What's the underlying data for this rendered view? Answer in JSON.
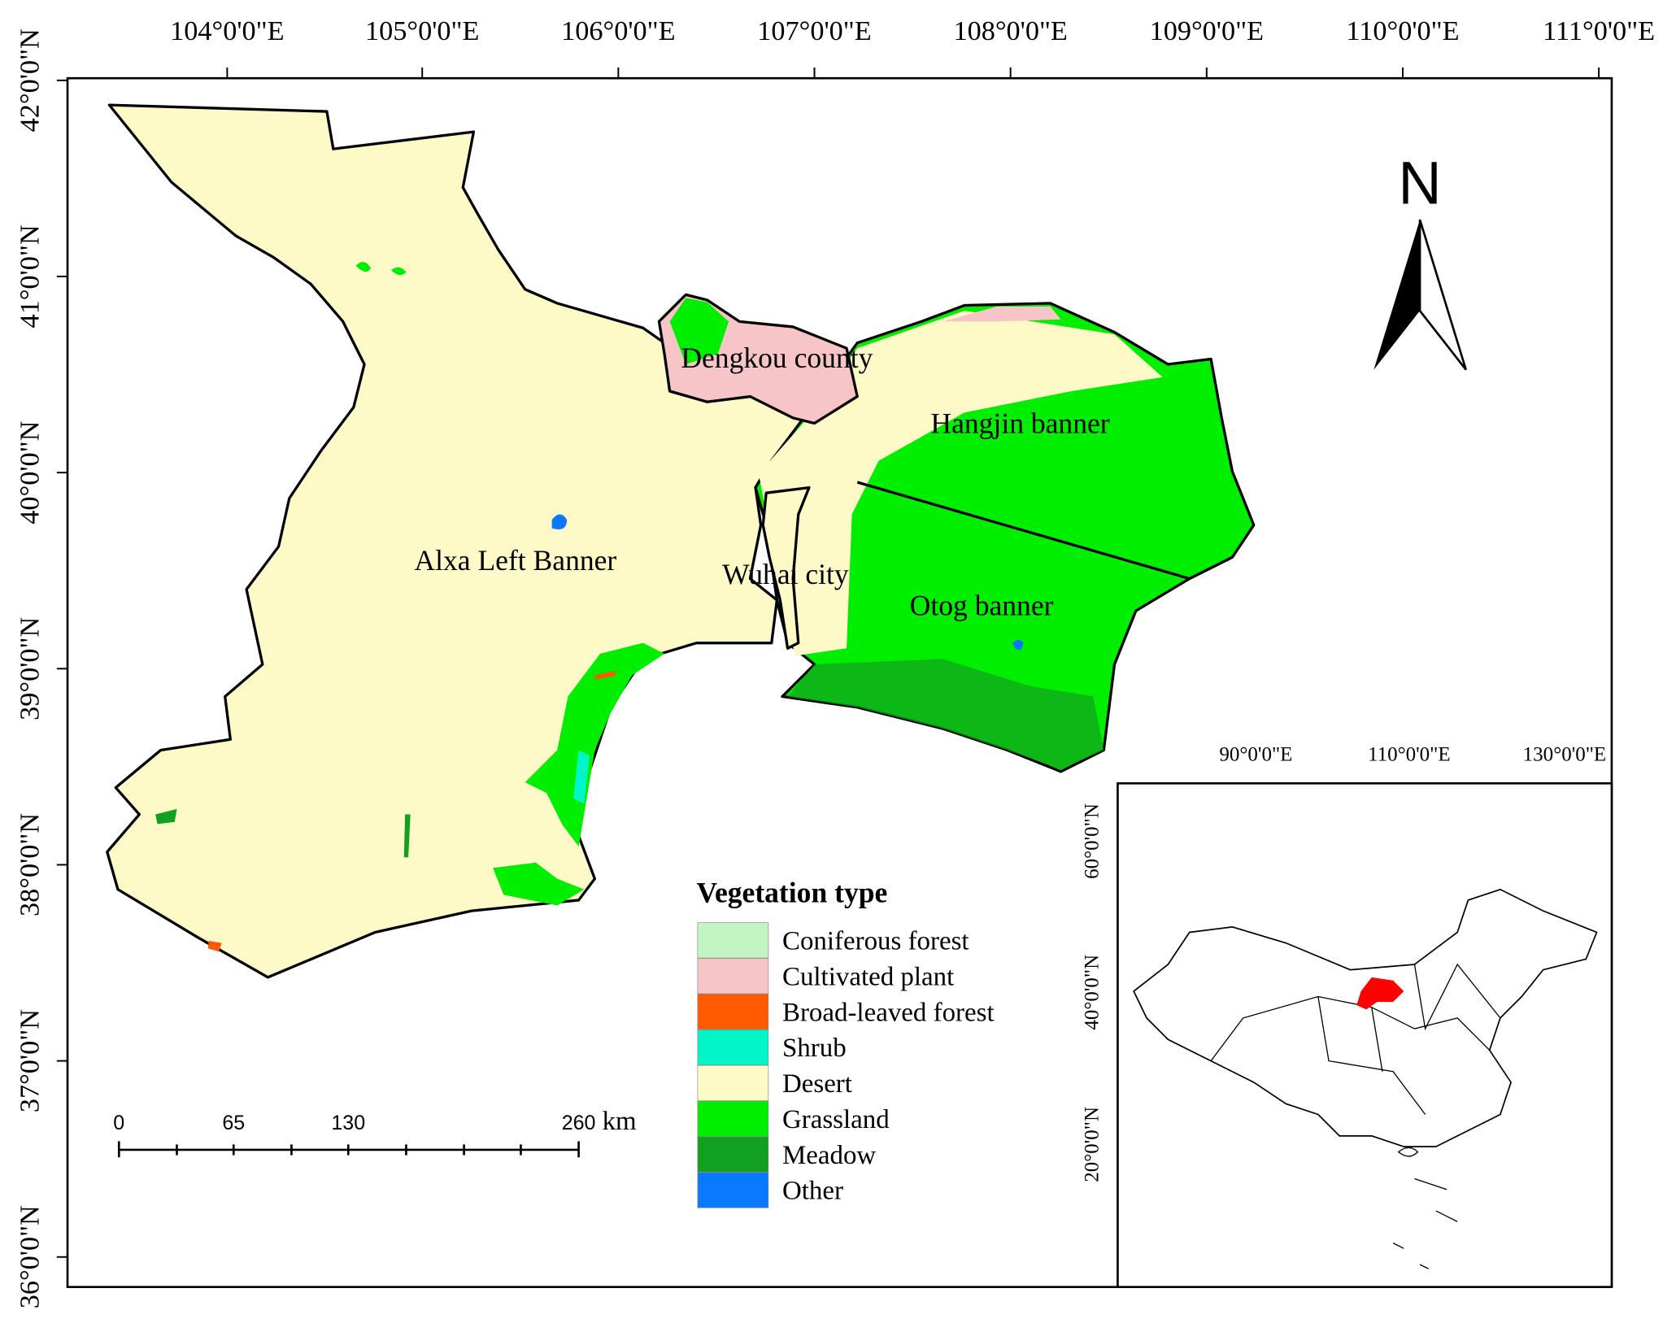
{
  "map": {
    "lon_labels": [
      "104°0'0\"E",
      "105°0'0\"E",
      "106°0'0\"E",
      "107°0'0\"E",
      "108°0'0\"E",
      "109°0'0\"E",
      "110°0'0\"E",
      "111°0'0\"E"
    ],
    "lat_labels": [
      "42°0'0\"N",
      "41°0'0\"N",
      "40°0'0\"N",
      "39°0'0\"N",
      "38°0'0\"N",
      "37°0'0\"N",
      "36°0'0\"N"
    ],
    "regions": [
      "Dengkou county",
      "Hangjin banner",
      "Alxa Left Banner",
      "Wuhai city",
      "Otog banner"
    ],
    "north": "N",
    "scale_bar": {
      "ticks": [
        0,
        65,
        130,
        260
      ],
      "unit": "km"
    },
    "legend": {
      "title": "Vegetation type",
      "items": [
        {
          "label": "Coniferous forest",
          "color": "#c3f5c3"
        },
        {
          "label": "Cultivated plant",
          "color": "#f7c4c8"
        },
        {
          "label": "Broad-leaved forest",
          "color": "#ff5a00"
        },
        {
          "label": "Shrub",
          "color": "#00f5c8"
        },
        {
          "label": "Desert",
          "color": "#fdfac8"
        },
        {
          "label": "Grassland",
          "color": "#00ee00"
        },
        {
          "label": "Meadow",
          "color": "#11a020"
        },
        {
          "label": "Other",
          "color": "#0a78ff"
        }
      ]
    },
    "inset": {
      "lon_labels": [
        "90°0'0\"E",
        "110°0'0\"E",
        "130°0'0\"E"
      ],
      "lat_labels": [
        "60°0'0\"N",
        "40°0'0\"N",
        "20°0'0\"N"
      ]
    }
  }
}
